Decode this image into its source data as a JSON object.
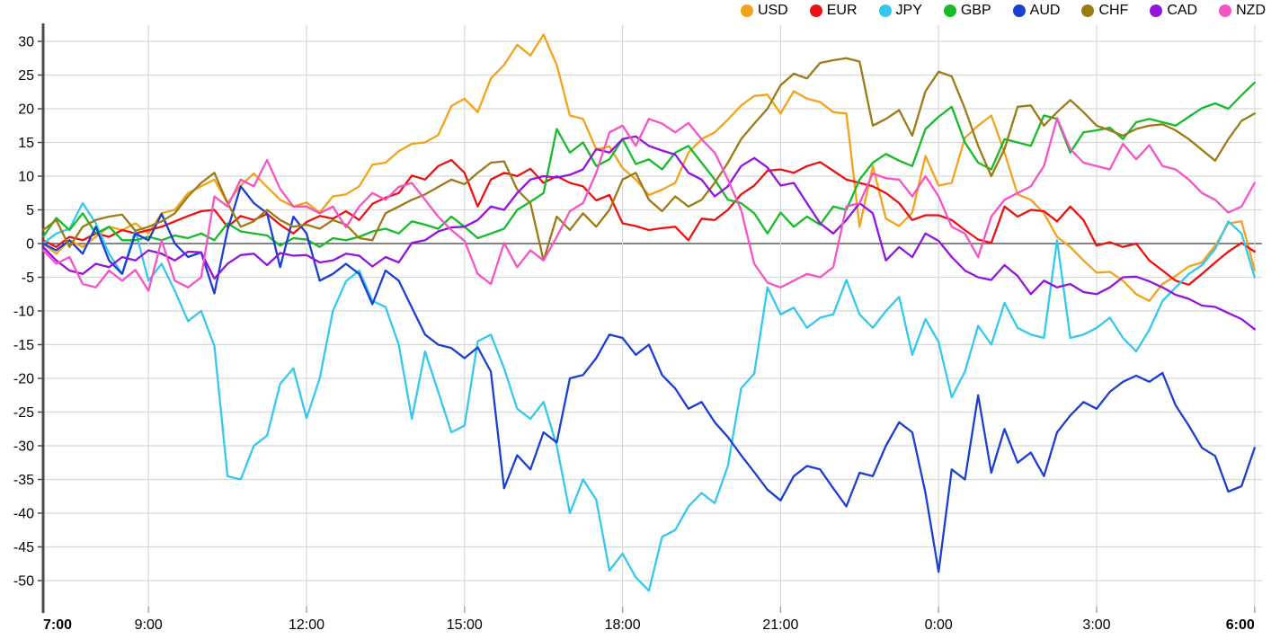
{
  "chart_data": {
    "type": "line",
    "title": "",
    "xlabel": "",
    "ylabel": "",
    "x_unit": "time_of_day",
    "x_start": "7:00",
    "x_end": "6:00",
    "sample_interval_minutes": 15,
    "ylim": [
      -50,
      30
    ],
    "y_tick_step": 5,
    "grid": true,
    "legend_position": "top-right",
    "x_ticks": [
      {
        "label": "7:00",
        "hour_offset": 0,
        "bold": true
      },
      {
        "label": "9:00",
        "hour_offset": 2,
        "bold": false
      },
      {
        "label": "12:00",
        "hour_offset": 5,
        "bold": false
      },
      {
        "label": "15:00",
        "hour_offset": 8,
        "bold": false
      },
      {
        "label": "18:00",
        "hour_offset": 11,
        "bold": false
      },
      {
        "label": "21:00",
        "hour_offset": 14,
        "bold": false
      },
      {
        "label": "0:00",
        "hour_offset": 17,
        "bold": false
      },
      {
        "label": "3:00",
        "hour_offset": 20,
        "bold": false
      },
      {
        "label": "6:00",
        "hour_offset": 23,
        "bold": true
      }
    ],
    "y_ticks": [
      30,
      25,
      20,
      15,
      10,
      5,
      0,
      -5,
      -10,
      -15,
      -20,
      -25,
      -30,
      -35,
      -40,
      -45,
      -50
    ],
    "series": [
      {
        "name": "USD",
        "color": "#f5a21b",
        "values": [
          0,
          -1.5,
          0.5,
          -0.5,
          1,
          2.5,
          2,
          3,
          1.5,
          4.5,
          5,
          7.5,
          8.5,
          9.5,
          6,
          8.6,
          10.4,
          8.4,
          6.5,
          5.5,
          6.1,
          4.6,
          7,
          7.3,
          8.5,
          11.7,
          12,
          13.7,
          14.8,
          15,
          16.1,
          20.4,
          21.5,
          19.5,
          24.5,
          26.5,
          29.5,
          27.9,
          31,
          26.5,
          19,
          18.5,
          14,
          14.4,
          11.2,
          9.5,
          7.2,
          8,
          9,
          13.5,
          15.5,
          16.5,
          18.4,
          20.5,
          21.9,
          22.1,
          19.3,
          22.6,
          21.5,
          21,
          19.5,
          19.3,
          2.5,
          11.5,
          3.7,
          2.6,
          4.6,
          13,
          8.6,
          9,
          15.7,
          17.5,
          19,
          13.5,
          7.3,
          6.5,
          4.5,
          1,
          -0.5,
          -2.5,
          -4.3,
          -4.2,
          -5.5,
          -7.5,
          -8.5,
          -6,
          -4.8,
          -3.4,
          -2.8,
          -0.3,
          3,
          3.3,
          -3.9
        ]
      },
      {
        "name": "EUR",
        "color": "#ed1111",
        "values": [
          0.5,
          -0.5,
          1,
          0.5,
          1.5,
          1,
          2,
          1.5,
          2,
          2.5,
          3.3,
          4.1,
          4.8,
          5,
          2.5,
          4.1,
          3.5,
          4.4,
          2.8,
          1.5,
          3.2,
          4.1,
          3.7,
          4.8,
          3.5,
          5.9,
          6.8,
          7.5,
          10.1,
          9.5,
          11.5,
          12.4,
          10.5,
          5.5,
          9.5,
          10.5,
          10,
          11.1,
          9,
          10,
          9,
          8.5,
          6.4,
          7.2,
          3,
          2.6,
          2,
          2.3,
          2.5,
          0.5,
          3.7,
          3.5,
          5,
          7.3,
          8.6,
          10.8,
          11,
          10.5,
          11.5,
          12.1,
          10.8,
          9.5,
          9,
          8.5,
          7.5,
          6,
          3.5,
          4.2,
          4.2,
          3.5,
          2,
          0.6,
          0.1,
          5.5,
          4,
          5,
          4.8,
          3.3,
          5.5,
          3.5,
          -0.3,
          0.2,
          -0.5,
          0,
          -2.5,
          -4,
          -5.5,
          -6.1,
          -4.5,
          -2.8,
          -1.2,
          0.1,
          -1.2
        ]
      },
      {
        "name": "JPY",
        "color": "#35c8ee",
        "values": [
          0,
          1.5,
          2.2,
          6,
          3,
          -1.5,
          -4.5,
          2,
          -5.5,
          -3,
          -7,
          -11.5,
          -10,
          -15.2,
          -34.5,
          -35,
          -30,
          -28.5,
          -20.8,
          -18.5,
          -25.9,
          -20,
          -10,
          -5.6,
          -4,
          -8.5,
          -9.4,
          -15,
          -26,
          -16,
          -22,
          -28,
          -27,
          -14.5,
          -13.5,
          -18.5,
          -24.5,
          -26,
          -23.5,
          -30,
          -40,
          -35,
          -38,
          -48.5,
          -46,
          -49.5,
          -51.5,
          -43.5,
          -42.5,
          -39,
          -37,
          -38.5,
          -33,
          -21.5,
          -19.3,
          -6.5,
          -10.5,
          -9.5,
          -12.5,
          -11,
          -10.5,
          -5.4,
          -10.5,
          -12.5,
          -10,
          -7.9,
          -16.5,
          -11.2,
          -14.6,
          -22.8,
          -19,
          -12.2,
          -15,
          -8.8,
          -12.5,
          -13.5,
          -14,
          0.5,
          -14,
          -13.5,
          -12.5,
          -11,
          -14,
          -16,
          -12.8,
          -8.5,
          -6.5,
          -4.5,
          -3.2,
          -0.8,
          3.3,
          1.5,
          -5
        ]
      },
      {
        "name": "GBP",
        "color": "#16bb28",
        "values": [
          1,
          3.8,
          2,
          4.5,
          1.5,
          2.5,
          0.5,
          0.5,
          1,
          0.5,
          1.2,
          0.8,
          1.5,
          0.5,
          3,
          1.8,
          1.5,
          1.2,
          -0.3,
          0.8,
          0.6,
          -0.5,
          0.8,
          0.5,
          1,
          1.8,
          2.2,
          1.5,
          3.3,
          2.8,
          2.2,
          4,
          2.5,
          0.8,
          1.5,
          2.2,
          5,
          6.2,
          7.5,
          17,
          13.5,
          15,
          11.5,
          12.5,
          15.5,
          11.8,
          12.5,
          11,
          13.5,
          14.5,
          12,
          9.5,
          6.5,
          6,
          4.5,
          1.5,
          4.6,
          2.5,
          4,
          2.8,
          5.5,
          5,
          9.5,
          12,
          13.3,
          12.3,
          11.5,
          17,
          18.8,
          20.3,
          15,
          12,
          11,
          15.5,
          15,
          14.5,
          19,
          18.5,
          13.5,
          16.5,
          16.8,
          17.2,
          15.5,
          18,
          18.5,
          18,
          17.5,
          18.8,
          20.1,
          20.8,
          20,
          22,
          23.9
        ]
      },
      {
        "name": "AUD",
        "color": "#1b3fd2",
        "values": [
          0,
          -1,
          0.5,
          -1.5,
          2.5,
          -2.5,
          -4.5,
          1.5,
          0.5,
          4.4,
          0,
          -2,
          -1.3,
          -7.4,
          2,
          8.5,
          6,
          4.5,
          -3.5,
          4,
          1.5,
          -5.5,
          -4.5,
          -3,
          -4.5,
          -9,
          -4,
          -5.5,
          -9.5,
          -13.5,
          -15,
          -15.5,
          -17,
          -15.4,
          -19,
          -36.3,
          -31.4,
          -33.5,
          -28,
          -29.5,
          -20,
          -19.5,
          -17,
          -13.5,
          -14,
          -16.5,
          -15,
          -19.5,
          -21.5,
          -24.5,
          -23.5,
          -26.5,
          -28.7,
          -31.4,
          -33.9,
          -36.5,
          -38.1,
          -34.5,
          -33,
          -33.5,
          -36.3,
          -39,
          -34,
          -34.5,
          -30,
          -26.5,
          -28,
          -37,
          -48.7,
          -33.5,
          -35,
          -22.5,
          -34,
          -27.5,
          -32.5,
          -31,
          -34.5,
          -28,
          -25.5,
          -23.5,
          -24.5,
          -22,
          -20.5,
          -19.6,
          -20.5,
          -19.2,
          -24,
          -27,
          -30.3,
          -31.5,
          -36.8,
          -36,
          -30.3
        ]
      },
      {
        "name": "CHF",
        "color": "#9c7b16",
        "values": [
          2,
          3.5,
          -0.5,
          2.5,
          3.5,
          4,
          4.3,
          1.9,
          2.5,
          3.3,
          4.5,
          7,
          9,
          10.5,
          6,
          2.5,
          3.3,
          5,
          3.5,
          2.5,
          2.8,
          2.2,
          3.5,
          2.8,
          0.8,
          0.5,
          4.5,
          5.5,
          6.5,
          7.3,
          8.4,
          9.5,
          8.8,
          10.5,
          12,
          12.2,
          8,
          6,
          -2.5,
          4,
          2,
          4.5,
          2.5,
          5,
          9.5,
          10.5,
          6.5,
          4.8,
          7,
          5.5,
          6.5,
          9,
          12,
          15.5,
          17.8,
          20,
          23.5,
          25.2,
          24.5,
          26.8,
          27.2,
          27.5,
          27,
          17.5,
          18.5,
          19.8,
          16,
          22.6,
          25.5,
          24.8,
          20,
          14.5,
          10,
          14,
          20.3,
          20.5,
          17.5,
          19.5,
          21.3,
          19.5,
          17.5,
          16.8,
          16,
          17,
          17.5,
          17.7,
          16.8,
          15.5,
          13.9,
          12.3,
          15.5,
          18.2,
          19.3
        ]
      },
      {
        "name": "CAD",
        "color": "#9414dd",
        "values": [
          -0.5,
          -2.5,
          -4,
          -4.5,
          -3,
          -3.5,
          -2,
          -2.5,
          -1,
          -1.5,
          -2.5,
          -1.2,
          -1.3,
          -5.2,
          -3,
          -1.7,
          -1.5,
          -3.2,
          -1.4,
          -1.8,
          -1.7,
          -2.8,
          -2.5,
          -1.5,
          -1.8,
          -3.4,
          -2,
          -2.8,
          0.1,
          0.5,
          1.8,
          2.4,
          2.5,
          3.5,
          5.5,
          5,
          7.5,
          9.5,
          10,
          9.8,
          10.2,
          11,
          14,
          13.5,
          15.5,
          15.9,
          14.5,
          13.8,
          13.2,
          10.5,
          9.5,
          7,
          8.5,
          11.5,
          12.7,
          11.3,
          8.6,
          9,
          6,
          3,
          1.5,
          3.5,
          6,
          4.5,
          -2.5,
          -0.5,
          -2,
          1.5,
          0.4,
          -2,
          -4,
          -5,
          -5.4,
          -3.2,
          -4.8,
          -7.5,
          -5.5,
          -6.5,
          -6,
          -7.2,
          -7.5,
          -6.5,
          -5,
          -4.9,
          -5.6,
          -6.5,
          -7.6,
          -8.2,
          -9.2,
          -9.4,
          -10.3,
          -11.2,
          -12.7
        ]
      },
      {
        "name": "NZD",
        "color": "#f653c7",
        "values": [
          -1,
          -3,
          -2,
          -6,
          -6.5,
          -4,
          -5.5,
          -3.9,
          -7,
          0.5,
          -5.5,
          -6.5,
          -5,
          7,
          5.5,
          9.5,
          8.5,
          12.4,
          8.1,
          5.5,
          5.5,
          4.5,
          5.5,
          2.4,
          5.5,
          7.5,
          6.5,
          8.4,
          9,
          6.5,
          4,
          2,
          0.4,
          -4.5,
          -6,
          0.1,
          -3.5,
          -1,
          -2.5,
          1,
          4.8,
          6,
          10.5,
          16.5,
          17.5,
          14.5,
          18.5,
          17.8,
          16.5,
          17.9,
          15.5,
          13.5,
          9.5,
          5,
          -3,
          -5.8,
          -6.5,
          -5.5,
          -4.5,
          -5,
          -3.5,
          5.5,
          6,
          10.4,
          9.7,
          9.5,
          7,
          10,
          7,
          2.5,
          1.5,
          -2,
          4,
          6.5,
          7.5,
          8.5,
          11.5,
          18.6,
          14,
          12,
          11.5,
          11,
          14.8,
          12.5,
          14.6,
          11.5,
          11,
          9.5,
          7.5,
          6.5,
          4.6,
          5.5,
          9
        ]
      }
    ]
  },
  "legend": {
    "items": [
      {
        "label": "USD",
        "color": "#f5a21b"
      },
      {
        "label": "EUR",
        "color": "#ed1111"
      },
      {
        "label": "JPY",
        "color": "#35c8ee"
      },
      {
        "label": "GBP",
        "color": "#16bb28"
      },
      {
        "label": "AUD",
        "color": "#1b3fd2"
      },
      {
        "label": "CHF",
        "color": "#9c7b16"
      },
      {
        "label": "CAD",
        "color": "#9414dd"
      },
      {
        "label": "NZD",
        "color": "#f653c7"
      }
    ]
  },
  "axis_style": {
    "grid_color": "#d8d8d8",
    "zero_line_color": "#3a3a3a",
    "spine_color": "#4a4a4a",
    "label_color": "#000000"
  }
}
